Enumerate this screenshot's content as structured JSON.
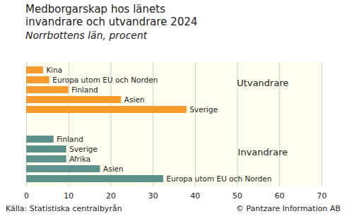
{
  "chart_data": {
    "type": "bar",
    "orientation": "horizontal",
    "title": "Medborgarskap hos länets invandrare och utvandrare 2024",
    "subtitle": "Norrbottens län, procent",
    "source": "Källa: Statistiska centralbyrån",
    "copyright": "© Pantzare Information AB",
    "series": [
      {
        "name": "Utvandrare",
        "color": "#f79a2e",
        "categories": [
          "Kina",
          "Europa utom EU och Norden",
          "Finland",
          "Asien",
          "Sverige"
        ],
        "values": [
          4,
          5.5,
          10,
          22.5,
          38
        ]
      },
      {
        "name": "Invandrare",
        "color": "#5e9189",
        "categories": [
          "Finland",
          "Sverige",
          "Afrika",
          "Asien",
          "Europa utom EU och Norden"
        ],
        "values": [
          6.5,
          9.5,
          9.5,
          17.5,
          32.5
        ]
      }
    ],
    "xlim": [
      0,
      70
    ],
    "xticks": [
      0,
      10,
      20,
      30,
      40,
      50,
      60,
      70
    ],
    "grid": true,
    "tick_labels": "x"
  }
}
